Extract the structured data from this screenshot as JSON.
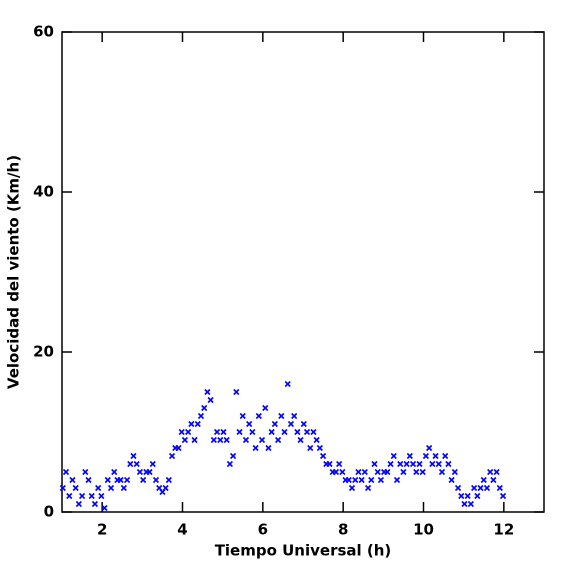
{
  "chart_data": {
    "type": "scatter",
    "xlabel": "Tiempo Universal (h)",
    "ylabel": "Velocidad del viento (Km/h)",
    "xlim": [
      1,
      13
    ],
    "ylim": [
      0,
      60
    ],
    "xticks": [
      2,
      4,
      6,
      8,
      10,
      12
    ],
    "yticks": [
      0,
      20,
      40,
      60
    ],
    "color": "#0000ff",
    "x": [
      1.02,
      1.1,
      1.18,
      1.26,
      1.34,
      1.42,
      1.5,
      1.58,
      1.66,
      1.74,
      1.82,
      1.9,
      1.98,
      2.06,
      2.14,
      2.22,
      2.3,
      2.38,
      2.46,
      2.54,
      2.62,
      2.7,
      2.78,
      2.86,
      2.94,
      3.02,
      3.1,
      3.18,
      3.26,
      3.34,
      3.42,
      3.5,
      3.58,
      3.66,
      3.74,
      3.82,
      3.9,
      3.98,
      4.06,
      4.14,
      4.22,
      4.3,
      4.38,
      4.46,
      4.54,
      4.62,
      4.7,
      4.78,
      4.86,
      4.94,
      5.02,
      5.1,
      5.18,
      5.26,
      5.34,
      5.42,
      5.5,
      5.58,
      5.66,
      5.74,
      5.82,
      5.9,
      5.98,
      6.06,
      6.14,
      6.22,
      6.3,
      6.38,
      6.46,
      6.54,
      6.62,
      6.7,
      6.78,
      6.86,
      6.94,
      7.02,
      7.1,
      7.18,
      7.26,
      7.34,
      7.42,
      7.5,
      7.58,
      7.66,
      7.74,
      7.82,
      7.9,
      7.98,
      8.06,
      8.14,
      8.22,
      8.3,
      8.38,
      8.46,
      8.54,
      8.62,
      8.7,
      8.78,
      8.86,
      8.94,
      9.02,
      9.1,
      9.18,
      9.26,
      9.34,
      9.42,
      9.5,
      9.58,
      9.66,
      9.74,
      9.82,
      9.9,
      9.98,
      10.06,
      10.14,
      10.22,
      10.3,
      10.38,
      10.46,
      10.54,
      10.62,
      10.7,
      10.78,
      10.86,
      10.94,
      11.02,
      11.1,
      11.18,
      11.26,
      11.34,
      11.42,
      11.5,
      11.58,
      11.66,
      11.74,
      11.82,
      11.9,
      11.98
    ],
    "values": [
      3,
      5,
      2,
      4,
      3,
      1,
      2,
      5,
      4,
      2,
      1,
      3,
      2,
      0.5,
      4,
      3,
      5,
      4,
      4,
      3,
      4,
      6,
      7,
      6,
      5,
      4,
      5,
      5,
      6,
      4,
      3,
      2.5,
      3,
      4,
      7,
      8,
      8,
      10,
      9,
      10,
      11,
      9,
      11,
      12,
      13,
      15,
      14,
      9,
      10,
      9,
      10,
      9,
      6,
      7,
      15,
      10,
      12,
      9,
      11,
      10,
      8,
      12,
      9,
      13,
      8,
      10,
      11,
      9,
      12,
      10,
      16,
      11,
      12,
      10,
      9,
      11,
      10,
      8,
      10,
      9,
      8,
      7,
      6,
      6,
      5,
      5,
      6,
      5,
      4,
      4,
      3,
      4,
      5,
      4,
      5,
      3,
      4,
      6,
      5,
      4,
      5,
      5,
      6,
      7,
      4,
      6,
      5,
      6,
      7,
      6,
      5,
      6,
      5,
      7,
      8,
      6,
      7,
      6,
      5,
      7,
      6,
      4,
      5,
      3,
      2,
      1,
      2,
      1,
      3,
      2,
      3,
      4,
      3,
      5,
      4,
      5,
      3,
      2
    ]
  }
}
